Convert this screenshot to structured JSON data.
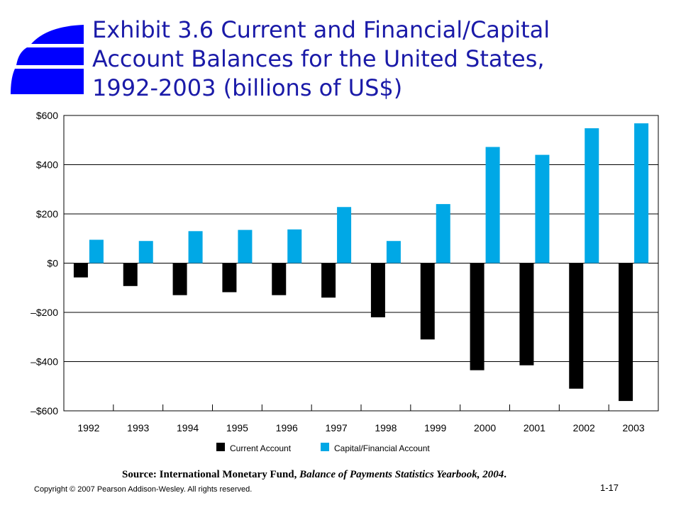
{
  "slide": {
    "title_lines": [
      "Exhibit 3.6  Current and Financial/Capital",
      "Account Balances for the United States,",
      "1992-2003 (billions of US$)"
    ],
    "source_prefix": "Source: International Monetary Fund, ",
    "source_italic": "Balance of Payments Statistics Yearbook, 2004",
    "source_suffix": ".",
    "copyright": "Copyright © 2007 Pearson Addison-Wesley. All rights reserved.",
    "slide_number": "1-17",
    "logo_color": "#0000ff"
  },
  "chart_data": {
    "type": "bar",
    "categories": [
      "1992",
      "1993",
      "1994",
      "1995",
      "1996",
      "1997",
      "1998",
      "1999",
      "2000",
      "2001",
      "2002",
      "2003"
    ],
    "series": [
      {
        "name": "Current Account",
        "color": "#000000",
        "values": [
          -58,
          -93,
          -130,
          -118,
          -130,
          -140,
          -220,
          -310,
          -435,
          -415,
          -510,
          -560
        ]
      },
      {
        "name": "Capital/Financial Account",
        "color": "#00a8e6",
        "values": [
          95,
          90,
          130,
          135,
          137,
          228,
          90,
          240,
          472,
          440,
          548,
          568
        ]
      }
    ],
    "ylim": [
      -600,
      600
    ],
    "yticks": [
      600,
      400,
      200,
      0,
      -200,
      -400,
      -600
    ],
    "ytick_labels": [
      "$600",
      "$400",
      "$200",
      "$0",
      "–$200",
      "–$400",
      "–$600"
    ],
    "grid": true,
    "legend": "bottom-center"
  }
}
